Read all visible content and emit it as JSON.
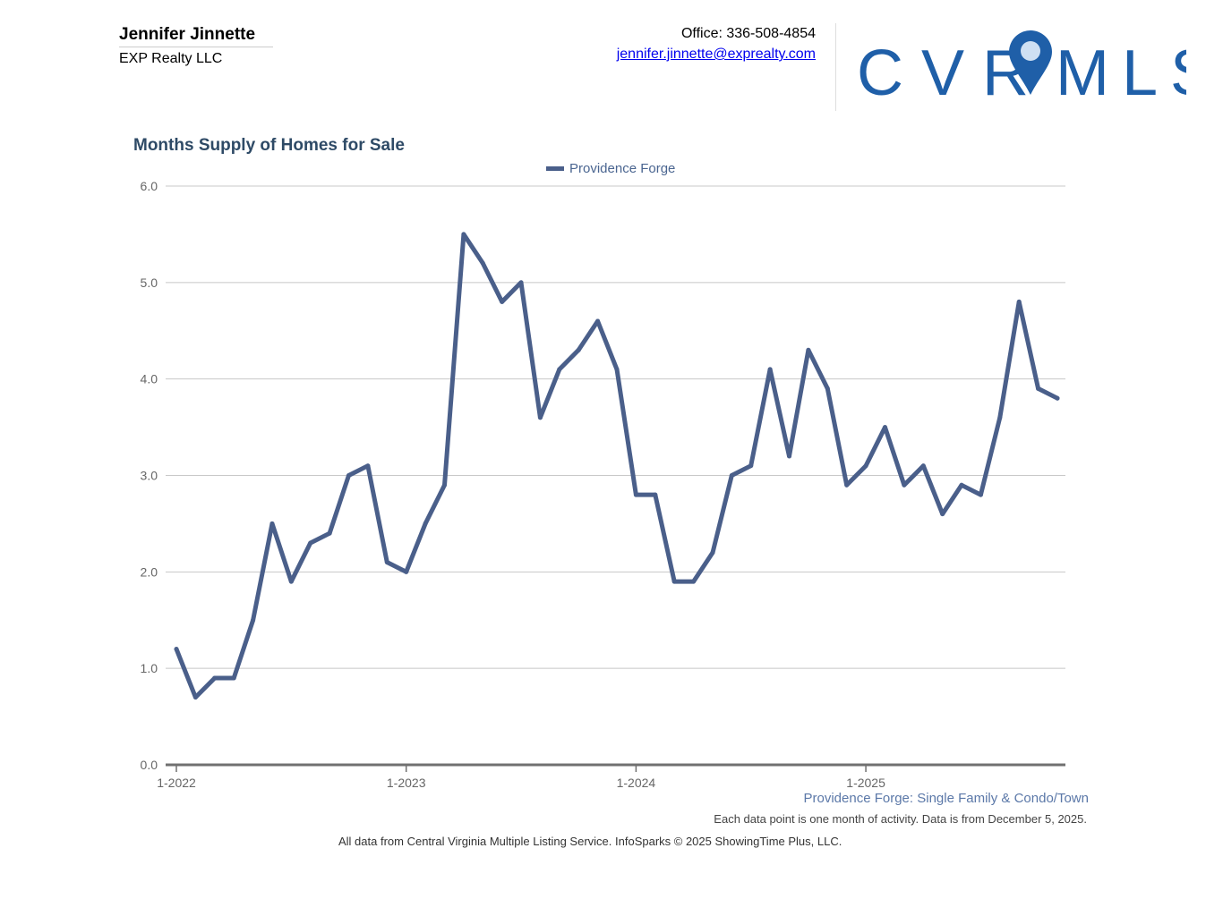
{
  "header": {
    "agent_name": "Jennifer Jinnette",
    "company": "EXP Realty LLC",
    "office": "Office: 336-508-4854",
    "email": "jennifer.jinnette@exprealty.com",
    "logo_text": "CVRMLS"
  },
  "colors": {
    "line": "#4a5f8a",
    "title": "#2e4a66",
    "logo": "#1f5fa8"
  },
  "chart_data": {
    "type": "line",
    "title": "Months Supply of Homes for Sale",
    "xlabel": "",
    "ylabel": "",
    "ylim": [
      0,
      6
    ],
    "yticks": [
      "0.0",
      "1.0",
      "2.0",
      "3.0",
      "4.0",
      "5.0",
      "6.0"
    ],
    "xticks": [
      {
        "index": 0,
        "label": "1-2022"
      },
      {
        "index": 12,
        "label": "1-2023"
      },
      {
        "index": 24,
        "label": "1-2024"
      },
      {
        "index": 36,
        "label": "1-2025"
      }
    ],
    "legend_position": "top-center",
    "series": [
      {
        "name": "Providence Forge",
        "values": [
          1.2,
          0.7,
          0.9,
          0.9,
          1.5,
          2.5,
          1.9,
          2.3,
          2.4,
          3.0,
          3.1,
          2.1,
          2.0,
          2.5,
          2.9,
          5.5,
          5.2,
          4.8,
          5.0,
          3.6,
          4.1,
          4.3,
          4.6,
          4.1,
          2.8,
          2.8,
          1.9,
          1.9,
          2.2,
          3.0,
          3.1,
          4.1,
          3.2,
          4.3,
          3.9,
          2.9,
          3.1,
          3.5,
          2.9,
          3.1,
          2.6,
          2.9,
          2.8,
          3.6,
          4.8,
          3.9,
          3.8
        ]
      }
    ],
    "subtitle": "Providence Forge: Single Family & Condo/Town",
    "note": "Each data point is one month of activity. Data is from December 5, 2025."
  },
  "footer": "All data from Central Virginia Multiple Listing Service. InfoSparks © 2025 ShowingTime Plus, LLC."
}
